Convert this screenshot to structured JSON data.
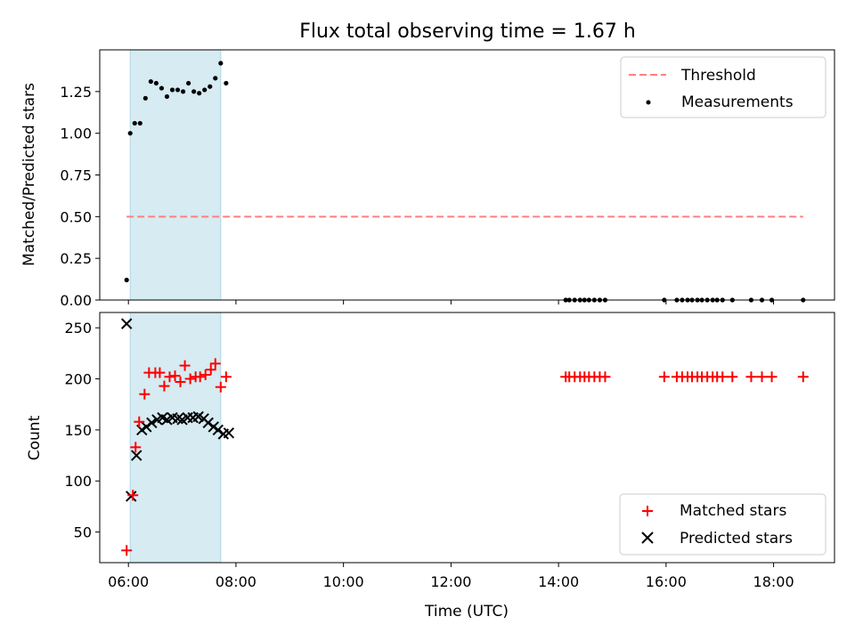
{
  "title": "Flux total observing time = 1.67 h",
  "colors": {
    "threshold": "#ff7f7f",
    "measurements": "#000000",
    "matched": "#ff0000",
    "predicted": "#000000",
    "observing_window": "#add8e6"
  },
  "chart_data": [
    {
      "type": "scatter",
      "ylabel": "Matched/Predicted stars",
      "xlabel": "",
      "xlim": [
        "05:28",
        "19:08"
      ],
      "ylim": [
        0,
        1.5
      ],
      "yticks": [
        0.0,
        0.25,
        0.5,
        0.75,
        1.0,
        1.25
      ],
      "ytick_labels": [
        "0.00",
        "0.25",
        "0.50",
        "0.75",
        "1.00",
        "1.25"
      ],
      "observing_window": [
        "06:02",
        "07:43"
      ],
      "threshold": {
        "value": 0.5,
        "x_start": "05:58",
        "x_end": "18:33",
        "style": "dashed"
      },
      "legend": {
        "position": "top-right",
        "entries": [
          "Threshold",
          "Measurements"
        ]
      },
      "series": [
        {
          "name": "Measurements",
          "marker": "dot",
          "x": [
            "05:58",
            "06:02",
            "06:07",
            "06:13",
            "06:19",
            "06:25",
            "06:31",
            "06:37",
            "06:43",
            "06:49",
            "06:55",
            "07:01",
            "07:07",
            "07:13",
            "07:19",
            "07:25",
            "07:31",
            "07:37",
            "07:43",
            "07:49",
            "14:08",
            "14:12",
            "14:18",
            "14:24",
            "14:29",
            "14:34",
            "14:40",
            "14:46",
            "14:52",
            "15:58",
            "16:12",
            "16:18",
            "16:24",
            "16:29",
            "16:35",
            "16:40",
            "16:46",
            "16:52",
            "16:57",
            "17:03",
            "17:14",
            "17:35",
            "17:47",
            "17:58",
            "18:33"
          ],
          "y": [
            0.12,
            1.0,
            1.06,
            1.06,
            1.21,
            1.31,
            1.3,
            1.27,
            1.22,
            1.26,
            1.26,
            1.25,
            1.3,
            1.25,
            1.24,
            1.26,
            1.28,
            1.33,
            1.42,
            1.3,
            0,
            0,
            0,
            0,
            0,
            0,
            0,
            0,
            0,
            0,
            0,
            0,
            0,
            0,
            0,
            0,
            0,
            0,
            0,
            0,
            0,
            0,
            0,
            0,
            0
          ]
        }
      ]
    },
    {
      "type": "scatter",
      "xlabel": "Time (UTC)",
      "ylabel": "Count",
      "xlim": [
        "05:28",
        "19:08"
      ],
      "ylim": [
        20,
        265
      ],
      "xticks": [
        "06:00",
        "08:00",
        "10:00",
        "12:00",
        "14:00",
        "16:00",
        "18:00"
      ],
      "yticks": [
        50,
        100,
        150,
        200,
        250
      ],
      "observing_window": [
        "06:02",
        "07:43"
      ],
      "legend": {
        "position": "bottom-right",
        "entries": [
          "Matched stars",
          "Predicted stars"
        ]
      },
      "series": [
        {
          "name": "Matched stars",
          "marker": "plus",
          "x": [
            "05:58",
            "06:05",
            "06:08",
            "06:12",
            "06:18",
            "06:23",
            "06:30",
            "06:35",
            "06:40",
            "06:46",
            "06:52",
            "06:58",
            "07:03",
            "07:09",
            "07:15",
            "07:20",
            "07:26",
            "07:32",
            "07:37",
            "07:43",
            "07:49",
            "14:08",
            "14:12",
            "14:18",
            "14:24",
            "14:29",
            "14:34",
            "14:40",
            "14:46",
            "14:52",
            "15:58",
            "16:12",
            "16:18",
            "16:24",
            "16:29",
            "16:35",
            "16:40",
            "16:46",
            "16:52",
            "16:57",
            "17:03",
            "17:14",
            "17:35",
            "17:47",
            "17:58",
            "18:33"
          ],
          "y": [
            32,
            86,
            133,
            158,
            185,
            206,
            206,
            206,
            193,
            202,
            203,
            197,
            213,
            200,
            202,
            202,
            204,
            209,
            215,
            192,
            202,
            202,
            202,
            202,
            202,
            202,
            202,
            202,
            202,
            202,
            202,
            202,
            202,
            202,
            202,
            202,
            202,
            202,
            202,
            202,
            202,
            202,
            202,
            202,
            202,
            202
          ]
        },
        {
          "name": "Predicted stars",
          "marker": "x",
          "x": [
            "05:58",
            "06:03",
            "06:09",
            "06:15",
            "06:20",
            "06:26",
            "06:32",
            "06:38",
            "06:43",
            "06:49",
            "06:55",
            "07:00",
            "07:06",
            "07:12",
            "07:18",
            "07:24",
            "07:29",
            "07:35",
            "07:40",
            "07:46",
            "07:52"
          ],
          "y": [
            254,
            85,
            125,
            150,
            153,
            157,
            160,
            162,
            160,
            162,
            161,
            160,
            162,
            162,
            163,
            161,
            157,
            153,
            150,
            146,
            147
          ]
        }
      ]
    }
  ]
}
